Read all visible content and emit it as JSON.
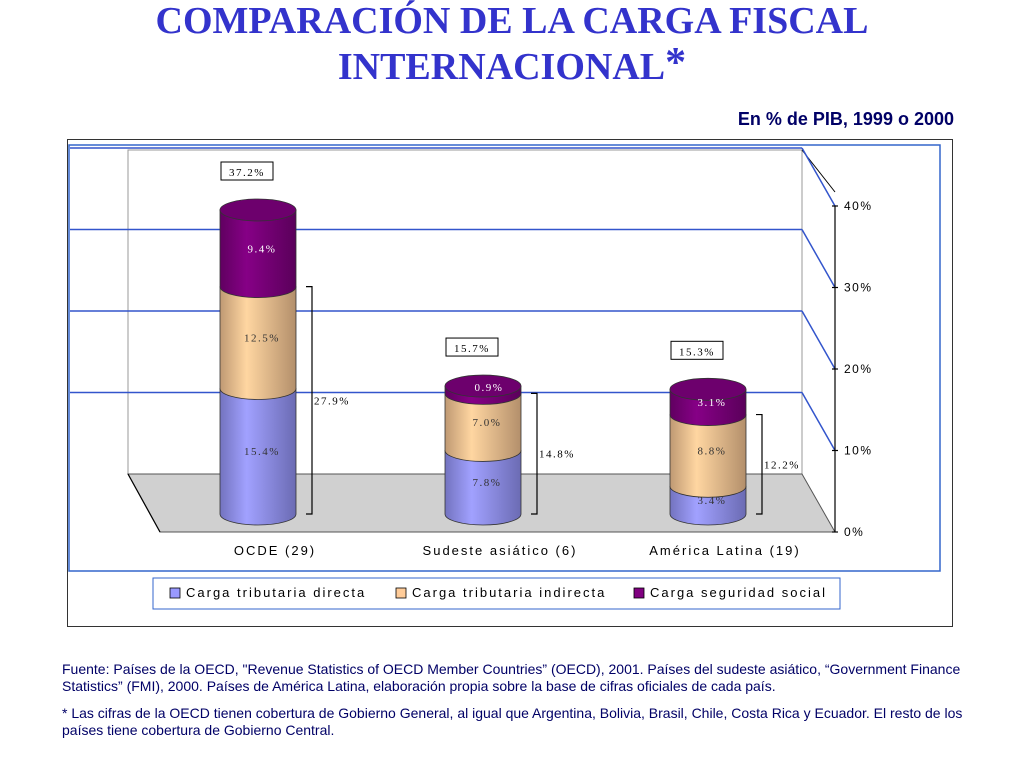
{
  "title": {
    "line1": "COMPARACIÓN DE LA CARGA FISCAL",
    "line2": "INTERNACIONAL",
    "asterisk": "*"
  },
  "subtitle": "En % de PIB, 1999 o 2000",
  "notes": {
    "source": "Fuente: Países de la OECD, \"Revenue Statistics of OECD Member Countries” (OECD), 2001. Países del sudeste asiático, “Government Finance Statistics” (FMI), 2000. Países de América Latina, elaboración propia sobre la base de cifras oficiales de cada país.",
    "coverage": "* Las cifras de la OECD tienen cobertura de Gobierno General, al igual que Argentina, Bolivia, Brasil, Chile, Costa Rica y Ecuador. El resto de los países tiene cobertura de Gobierno Central."
  },
  "chart_data": {
    "type": "bar",
    "stacked": true,
    "categories": [
      "OCDE (29)",
      "Sudeste asiático (6)",
      "América Latina (19)"
    ],
    "series": [
      {
        "name": "Carga tributaria directa",
        "color": "#9999ff",
        "values": [
          15.4,
          7.8,
          3.4
        ],
        "labels": [
          "15.4%",
          "7.8%",
          "3.4%"
        ]
      },
      {
        "name": "Carga tributaria indirecta",
        "color": "#ffcc99",
        "values": [
          12.5,
          7.0,
          8.8
        ],
        "labels": [
          "12.5%",
          "7.0%",
          "8.8%"
        ]
      },
      {
        "name": "Carga seguridad social",
        "color": "#800080",
        "values": [
          9.4,
          0.9,
          3.1
        ],
        "labels": [
          "9.4%",
          "0.9%",
          "3.1%"
        ]
      }
    ],
    "totals": [
      "37.2%",
      "15.7%",
      "15.3%"
    ],
    "tax_subtotals": [
      "27.9%",
      "14.8%",
      "12.2%"
    ],
    "yticks": [
      "0%",
      "10%",
      "20%",
      "30%",
      "40%"
    ],
    "ylim": [
      0,
      40
    ],
    "axis_side": "right",
    "grid": true,
    "legend_position": "bottom"
  }
}
